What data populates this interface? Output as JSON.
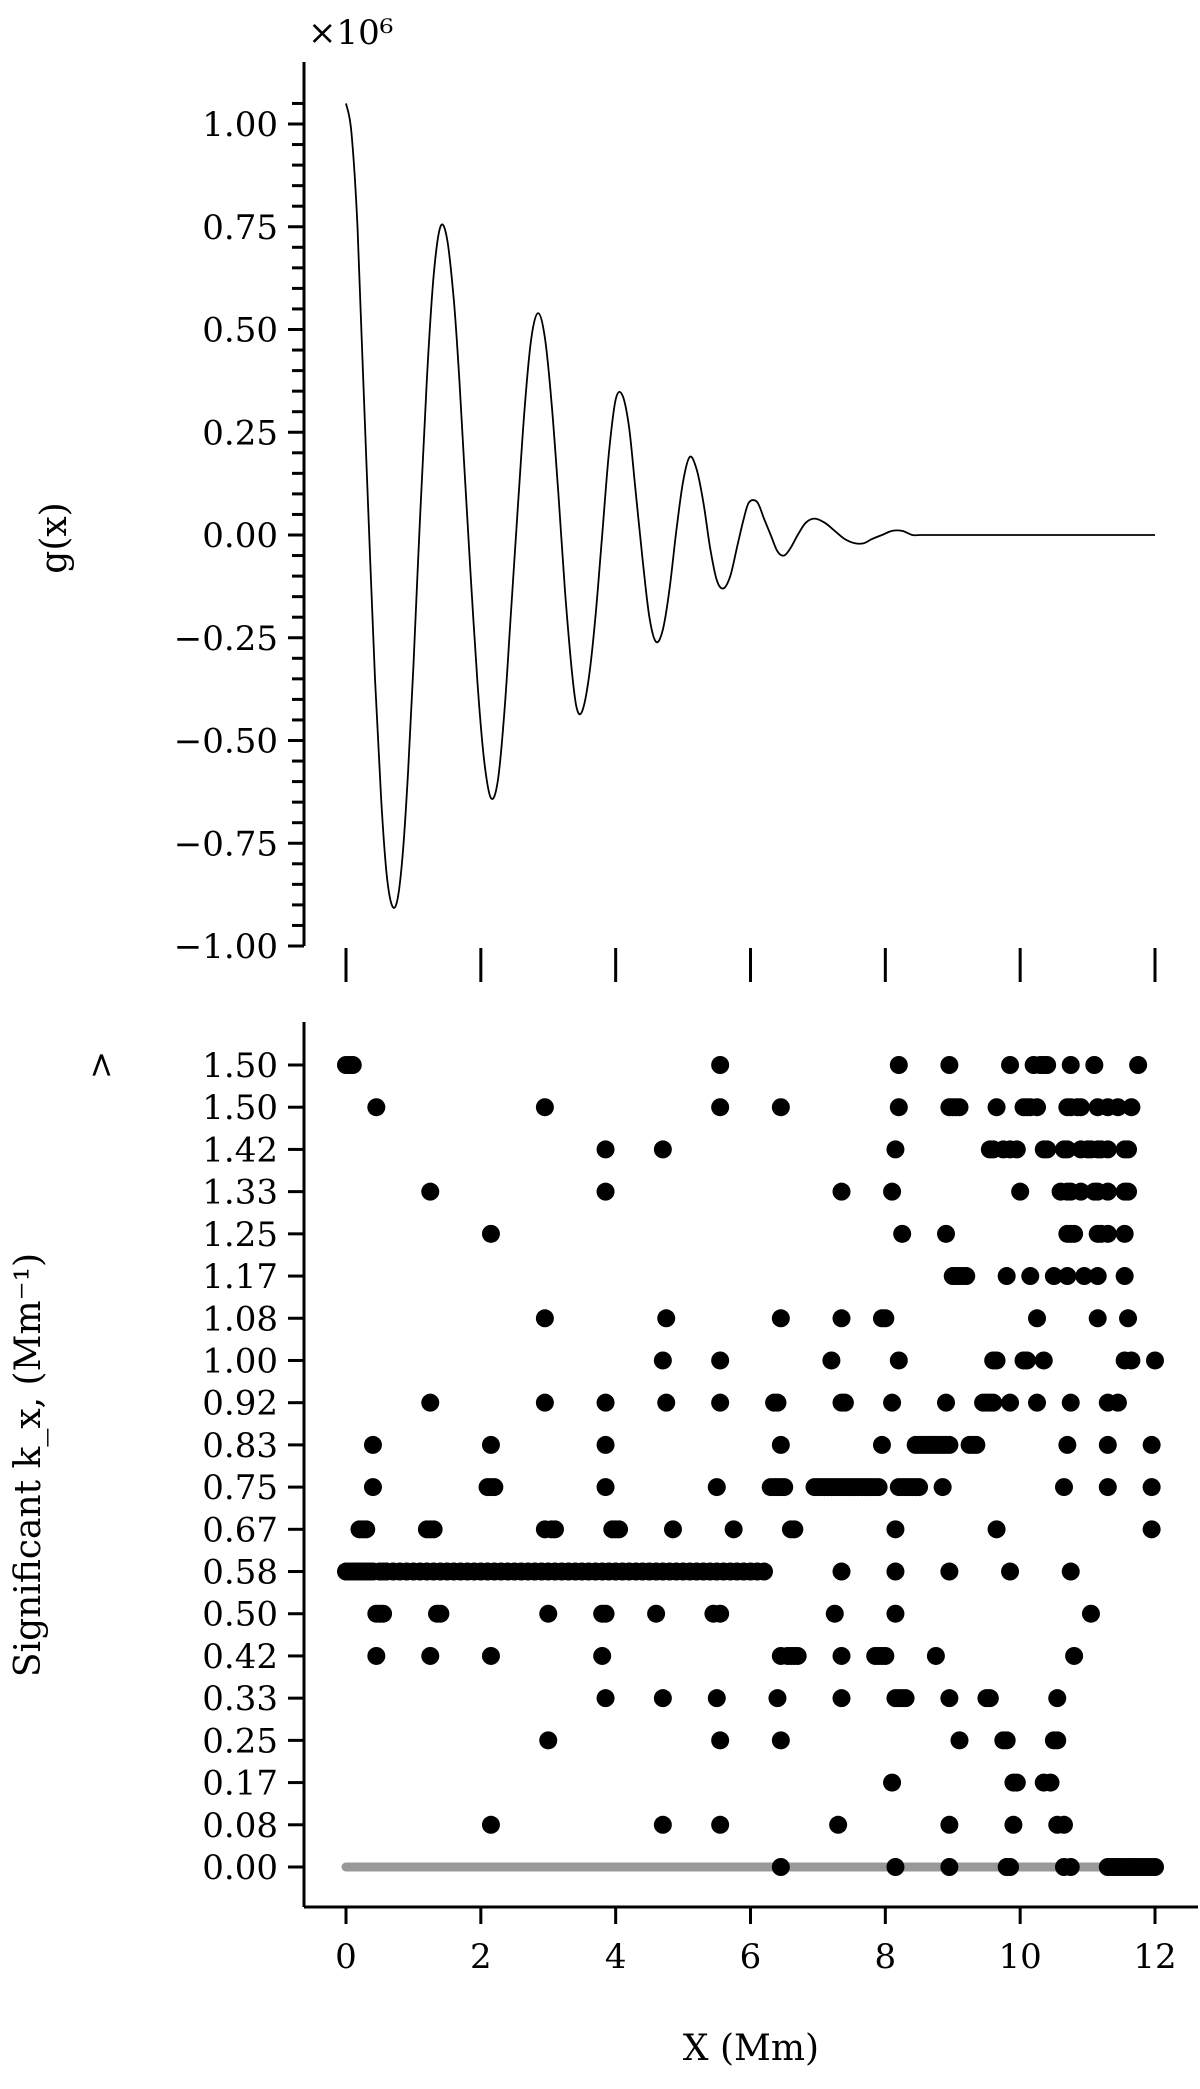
{
  "chart_data": [
    {
      "type": "line",
      "ylabel": "g(x)",
      "xlabel": "",
      "offset_text": "×10⁶",
      "scale": 1000000,
      "xlim": [
        -0.6,
        12.3
      ],
      "ylim": [
        -1.0,
        1.1
      ],
      "xticks": [
        0,
        2,
        4,
        6,
        8,
        10,
        12
      ],
      "yticks": [
        1.0,
        0.75,
        0.5,
        0.25,
        0.0,
        -0.25,
        -0.5,
        -0.75,
        -1.0
      ],
      "ytick_labels": [
        "1.00",
        "0.75",
        "0.50",
        "0.25",
        "0.00",
        "−0.25",
        "−0.50",
        "−0.75",
        "−1.00"
      ],
      "grid": false,
      "series": [
        {
          "color": "#000000",
          "x": [
            0.0,
            0.08,
            0.17,
            0.25,
            0.34,
            0.43,
            0.52,
            0.6,
            0.68,
            0.76,
            0.84,
            0.92,
            1.0,
            1.1,
            1.2,
            1.3,
            1.4,
            1.5,
            1.6,
            1.68,
            1.76,
            1.85,
            1.95,
            2.05,
            2.15,
            2.25,
            2.35,
            2.45,
            2.55,
            2.65,
            2.75,
            2.85,
            2.95,
            3.05,
            3.15,
            3.25,
            3.35,
            3.42,
            3.5,
            3.6,
            3.7,
            3.8,
            3.9,
            4.0,
            4.1,
            4.2,
            4.3,
            4.4,
            4.5,
            4.6,
            4.7,
            4.8,
            4.9,
            5.0,
            5.1,
            5.2,
            5.3,
            5.4,
            5.5,
            5.6,
            5.7,
            5.8,
            5.9,
            5.98,
            6.1,
            6.2,
            6.3,
            6.4,
            6.5,
            6.6,
            6.7,
            6.82,
            6.95,
            7.1,
            7.25,
            7.4,
            7.55,
            7.68,
            7.8,
            7.95,
            8.1,
            8.25,
            8.4,
            8.52,
            8.65,
            8.8,
            8.95,
            9.1,
            9.25,
            9.4,
            9.55,
            9.7,
            9.85,
            10.0,
            10.1,
            10.25,
            10.4,
            10.55,
            10.7,
            10.85,
            11.0,
            11.2,
            11.4,
            11.6,
            11.8,
            12.0
          ],
          "y": [
            1.05,
            0.98,
            0.75,
            0.4,
            0.02,
            -0.35,
            -0.64,
            -0.82,
            -0.9,
            -0.89,
            -0.78,
            -0.58,
            -0.32,
            0.05,
            0.38,
            0.63,
            0.75,
            0.72,
            0.57,
            0.38,
            0.15,
            -0.1,
            -0.36,
            -0.55,
            -0.64,
            -0.6,
            -0.43,
            -0.18,
            0.07,
            0.31,
            0.48,
            0.54,
            0.48,
            0.32,
            0.1,
            -0.14,
            -0.33,
            -0.42,
            -0.43,
            -0.35,
            -0.2,
            0.0,
            0.2,
            0.33,
            0.34,
            0.26,
            0.1,
            -0.06,
            -0.2,
            -0.26,
            -0.23,
            -0.13,
            0.01,
            0.13,
            0.19,
            0.16,
            0.08,
            -0.03,
            -0.11,
            -0.13,
            -0.1,
            -0.03,
            0.04,
            0.08,
            0.08,
            0.04,
            0.0,
            -0.04,
            -0.05,
            -0.03,
            0.0,
            0.03,
            0.04,
            0.03,
            0.01,
            -0.01,
            -0.02,
            -0.02,
            -0.01,
            0.0,
            0.01,
            0.01,
            0.0,
            0.0,
            0.0,
            0.0,
            0.0,
            0.0,
            0.0,
            0.0,
            0.0,
            0.0,
            0.0,
            0.0,
            0.0,
            0.0,
            0.0,
            0.0,
            0.0,
            0.0,
            0.0,
            0.0,
            0.0,
            0.0,
            0.0,
            0.0
          ]
        }
      ]
    },
    {
      "type": "scatter",
      "ylabel": "Significant k_x, (Mm⁻¹)",
      "xlabel": "X (Mm)",
      "xlim": [
        -0.6,
        12.3
      ],
      "xticks": [
        0,
        2,
        4,
        6,
        8,
        10,
        12
      ],
      "xtick_labels": [
        "0",
        "2",
        "4",
        "6",
        "8",
        "10",
        "12"
      ],
      "ytick_labels": [
        "0.00",
        "0.08",
        "0.17",
        "0.25",
        "0.33",
        "0.42",
        "0.50",
        "0.58",
        "0.67",
        "0.75",
        "0.83",
        "0.92",
        "1.00",
        "1.08",
        "1.17",
        "1.25",
        "1.33",
        "1.42",
        "1.50",
        "1.50"
      ],
      "ytick_suffix_top": ">",
      "grid": false,
      "baseline": {
        "color": "#999999",
        "x": [
          0,
          12
        ],
        "level": 0
      },
      "point_color": "#000000",
      "points_by_level": [
        [
          6.45,
          8.15,
          8.95,
          9.8,
          9.85,
          10.65,
          10.75,
          11.3,
          11.35,
          11.4,
          11.45,
          11.5,
          11.55,
          11.6,
          11.65,
          11.7,
          11.75,
          11.8,
          11.85,
          11.9,
          11.95,
          12.0
        ],
        [
          2.15,
          4.7,
          5.55,
          7.3,
          8.95,
          9.9,
          10.55,
          10.65
        ],
        [
          8.1,
          9.9,
          9.95,
          10.35,
          10.45
        ],
        [
          3.0,
          5.55,
          6.45,
          9.1,
          9.75,
          9.8,
          10.5,
          10.55
        ],
        [
          3.85,
          4.7,
          5.5,
          6.4,
          7.35,
          8.15,
          8.2,
          8.25,
          8.3,
          8.95,
          9.5,
          9.55,
          10.55
        ],
        [
          0.45,
          1.25,
          2.15,
          3.8,
          6.45,
          6.55,
          6.6,
          6.65,
          6.7,
          7.35,
          7.85,
          7.9,
          7.95,
          8.0,
          8.75,
          10.8
        ],
        [
          0.45,
          0.5,
          0.55,
          1.35,
          1.4,
          3.0,
          3.8,
          3.85,
          4.6,
          5.45,
          5.55,
          7.25,
          8.15,
          11.05
        ],
        [
          0.0,
          0.05,
          0.1,
          0.15,
          0.2,
          0.25,
          0.3,
          0.35,
          0.4,
          0.5,
          0.55,
          0.6,
          0.7,
          0.8,
          0.9,
          1.0,
          1.1,
          1.2,
          1.3,
          1.4,
          1.5,
          1.6,
          1.7,
          1.8,
          1.9,
          2.0,
          2.1,
          2.2,
          2.3,
          2.4,
          2.5,
          2.6,
          2.7,
          2.8,
          2.9,
          3.0,
          3.1,
          3.2,
          3.3,
          3.4,
          3.5,
          3.6,
          3.7,
          3.8,
          3.9,
          4.0,
          4.1,
          4.2,
          4.3,
          4.4,
          4.5,
          4.6,
          4.7,
          4.8,
          4.9,
          5.0,
          5.1,
          5.2,
          5.3,
          5.4,
          5.5,
          5.6,
          5.7,
          5.8,
          5.9,
          6.0,
          6.1,
          6.2,
          7.35,
          8.15,
          8.95,
          9.85,
          10.75
        ],
        [
          0.2,
          0.25,
          0.3,
          1.2,
          1.25,
          1.3,
          2.95,
          3.05,
          3.1,
          3.95,
          4.0,
          4.05,
          4.85,
          5.75,
          6.6,
          6.65,
          8.15,
          9.65,
          11.95
        ],
        [
          0.4,
          2.1,
          2.15,
          2.2,
          3.85,
          5.5,
          6.3,
          6.35,
          6.4,
          6.45,
          6.5,
          6.95,
          7.0,
          7.05,
          7.1,
          7.15,
          7.2,
          7.25,
          7.3,
          7.35,
          7.4,
          7.45,
          7.5,
          7.55,
          7.6,
          7.65,
          7.7,
          7.75,
          7.8,
          7.85,
          7.9,
          8.2,
          8.25,
          8.3,
          8.35,
          8.4,
          8.45,
          8.5,
          8.85,
          10.65,
          11.3,
          11.95
        ],
        [
          0.4,
          2.15,
          3.85,
          6.45,
          7.95,
          8.45,
          8.5,
          8.55,
          8.6,
          8.65,
          8.7,
          8.75,
          8.8,
          8.85,
          8.9,
          8.95,
          9.25,
          9.3,
          9.35,
          10.7,
          11.3,
          11.95
        ],
        [
          1.25,
          2.95,
          3.85,
          4.75,
          5.55,
          6.35,
          6.4,
          7.35,
          7.4,
          8.1,
          8.9,
          9.45,
          9.5,
          9.55,
          9.6,
          9.85,
          10.25,
          10.75,
          11.3,
          11.45
        ],
        [
          4.7,
          5.55,
          7.2,
          8.2,
          9.6,
          9.65,
          10.05,
          10.1,
          10.35,
          11.55,
          11.65,
          12.0
        ],
        [
          2.95,
          4.75,
          6.45,
          7.35,
          7.95,
          8.0,
          10.25,
          11.15,
          11.6
        ],
        [
          9.0,
          9.05,
          9.1,
          9.15,
          9.2,
          9.8,
          10.15,
          10.5,
          10.7,
          10.95,
          11.15,
          11.55
        ],
        [
          2.15,
          8.25,
          8.9,
          10.7,
          10.75,
          10.8,
          11.15,
          11.2,
          11.3,
          11.55
        ],
        [
          1.25,
          3.85,
          7.35,
          8.1,
          10.0,
          10.6,
          10.7,
          10.75,
          10.9,
          11.1,
          11.15,
          11.3,
          11.55,
          11.6
        ],
        [
          3.85,
          4.7,
          8.15,
          9.55,
          9.6,
          9.75,
          9.85,
          9.95,
          10.35,
          10.4,
          10.65,
          10.7,
          10.9,
          11.0,
          11.05,
          11.15,
          11.2,
          11.3,
          11.55,
          11.6
        ],
        [
          0.45,
          2.95,
          5.55,
          6.45,
          8.2,
          8.95,
          9.0,
          9.05,
          9.1,
          9.65,
          10.05,
          10.1,
          10.15,
          10.25,
          10.7,
          10.75,
          10.85,
          10.9,
          11.15,
          11.3,
          11.45,
          11.65
        ],
        [
          0.0,
          0.05,
          0.1,
          5.55,
          8.2,
          8.95,
          9.85,
          10.2,
          10.3,
          10.35,
          10.4,
          10.75,
          11.1,
          11.75
        ]
      ]
    }
  ]
}
